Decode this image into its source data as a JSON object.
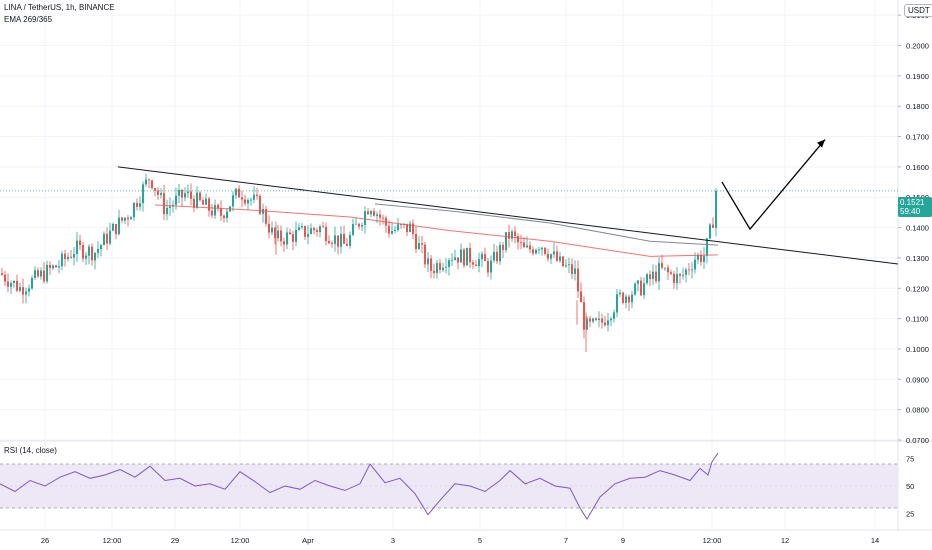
{
  "header": {
    "symbol_line": "LINA / TetherUS, 1h, BINANCE",
    "indicator_line": "EMA 269/365",
    "currency_badge": "USDT"
  },
  "rsi": {
    "label": "RSI (14, close)",
    "levels": [
      75,
      50,
      25
    ]
  },
  "last_price": {
    "value": "0.1521",
    "countdown": "59:40"
  },
  "colors": {
    "up": "#26a69a",
    "down": "#ef5350",
    "ema_fast": "#ef5350",
    "ema_slow": "#787b86",
    "rsi_line": "#7e57c2",
    "rsi_band": "#ede7f6",
    "trendline": "#131722"
  },
  "chart_data": [
    {
      "type": "candlestick",
      "title": "LINA / TetherUS, 1h, BINANCE",
      "ylim": [
        0.07,
        0.215
      ],
      "y_ticks": [
        "0.2100",
        "0.2000",
        "0.1900",
        "0.1800",
        "0.1700",
        "0.1600",
        "0.1500",
        "0.1400",
        "0.1300",
        "0.1200",
        "0.1100",
        "0.1000",
        "0.0900",
        "0.0800",
        "0.0700"
      ],
      "x_ticks": [
        "26",
        "12:00",
        "29",
        "12:00",
        "Apr",
        "3",
        "5",
        "7",
        "9",
        "12:00",
        "12",
        "14"
      ],
      "price_path": [
        {
          "x": 0,
          "y": 0.125
        },
        {
          "x": 20,
          "y": 0.12
        },
        {
          "x": 40,
          "y": 0.124
        },
        {
          "x": 60,
          "y": 0.128
        },
        {
          "x": 75,
          "y": 0.133
        },
        {
          "x": 95,
          "y": 0.132
        },
        {
          "x": 115,
          "y": 0.14
        },
        {
          "x": 130,
          "y": 0.145
        },
        {
          "x": 150,
          "y": 0.157
        },
        {
          "x": 165,
          "y": 0.146
        },
        {
          "x": 185,
          "y": 0.151
        },
        {
          "x": 200,
          "y": 0.148
        },
        {
          "x": 220,
          "y": 0.144
        },
        {
          "x": 240,
          "y": 0.152
        },
        {
          "x": 260,
          "y": 0.147
        },
        {
          "x": 275,
          "y": 0.136
        },
        {
          "x": 300,
          "y": 0.138
        },
        {
          "x": 320,
          "y": 0.14
        },
        {
          "x": 345,
          "y": 0.134
        },
        {
          "x": 370,
          "y": 0.148
        },
        {
          "x": 390,
          "y": 0.139
        },
        {
          "x": 410,
          "y": 0.14
        },
        {
          "x": 430,
          "y": 0.126
        },
        {
          "x": 450,
          "y": 0.131
        },
        {
          "x": 475,
          "y": 0.13
        },
        {
          "x": 490,
          "y": 0.127
        },
        {
          "x": 510,
          "y": 0.138
        },
        {
          "x": 525,
          "y": 0.132
        },
        {
          "x": 540,
          "y": 0.135
        },
        {
          "x": 560,
          "y": 0.128
        },
        {
          "x": 575,
          "y": 0.125
        },
        {
          "x": 585,
          "y": 0.107
        },
        {
          "x": 600,
          "y": 0.108
        },
        {
          "x": 620,
          "y": 0.117
        },
        {
          "x": 640,
          "y": 0.12
        },
        {
          "x": 660,
          "y": 0.126
        },
        {
          "x": 680,
          "y": 0.123
        },
        {
          "x": 695,
          "y": 0.13
        },
        {
          "x": 705,
          "y": 0.131
        },
        {
          "x": 712,
          "y": 0.141
        },
        {
          "x": 718,
          "y": 0.152
        }
      ],
      "ema_fast": [
        {
          "x": 155,
          "y": 0.1475
        },
        {
          "x": 250,
          "y": 0.1458
        },
        {
          "x": 350,
          "y": 0.1435
        },
        {
          "x": 450,
          "y": 0.139
        },
        {
          "x": 550,
          "y": 0.1355
        },
        {
          "x": 650,
          "y": 0.1305
        },
        {
          "x": 718,
          "y": 0.131
        }
      ],
      "ema_slow": [
        {
          "x": 375,
          "y": 0.1478
        },
        {
          "x": 450,
          "y": 0.1455
        },
        {
          "x": 550,
          "y": 0.1415
        },
        {
          "x": 650,
          "y": 0.1355
        },
        {
          "x": 718,
          "y": 0.1342
        }
      ],
      "trendline": [
        {
          "x": 118,
          "y": 0.16
        },
        {
          "x": 898,
          "y": 0.128
        }
      ],
      "projection": [
        {
          "x": 722,
          "y": 0.155
        },
        {
          "x": 750,
          "y": 0.1395
        },
        {
          "x": 825,
          "y": 0.169
        }
      ],
      "last": 0.1521
    },
    {
      "type": "line",
      "title": "RSI (14, close)",
      "ylim": [
        10,
        90
      ],
      "levels": [
        70,
        30
      ],
      "y_ticks": [
        75,
        50,
        25
      ],
      "values": [
        {
          "x": 0,
          "y": 52
        },
        {
          "x": 15,
          "y": 45
        },
        {
          "x": 30,
          "y": 55
        },
        {
          "x": 45,
          "y": 50
        },
        {
          "x": 60,
          "y": 58
        },
        {
          "x": 75,
          "y": 63
        },
        {
          "x": 90,
          "y": 57
        },
        {
          "x": 105,
          "y": 60
        },
        {
          "x": 120,
          "y": 65
        },
        {
          "x": 135,
          "y": 58
        },
        {
          "x": 150,
          "y": 68
        },
        {
          "x": 165,
          "y": 55
        },
        {
          "x": 180,
          "y": 57
        },
        {
          "x": 195,
          "y": 50
        },
        {
          "x": 210,
          "y": 52
        },
        {
          "x": 225,
          "y": 47
        },
        {
          "x": 240,
          "y": 63
        },
        {
          "x": 255,
          "y": 54
        },
        {
          "x": 270,
          "y": 44
        },
        {
          "x": 285,
          "y": 50
        },
        {
          "x": 300,
          "y": 47
        },
        {
          "x": 315,
          "y": 55
        },
        {
          "x": 330,
          "y": 50
        },
        {
          "x": 345,
          "y": 46
        },
        {
          "x": 360,
          "y": 52
        },
        {
          "x": 370,
          "y": 70
        },
        {
          "x": 385,
          "y": 53
        },
        {
          "x": 400,
          "y": 57
        },
        {
          "x": 415,
          "y": 43
        },
        {
          "x": 428,
          "y": 24
        },
        {
          "x": 440,
          "y": 37
        },
        {
          "x": 455,
          "y": 52
        },
        {
          "x": 470,
          "y": 50
        },
        {
          "x": 485,
          "y": 45
        },
        {
          "x": 500,
          "y": 55
        },
        {
          "x": 510,
          "y": 64
        },
        {
          "x": 525,
          "y": 52
        },
        {
          "x": 540,
          "y": 57
        },
        {
          "x": 555,
          "y": 50
        },
        {
          "x": 570,
          "y": 48
        },
        {
          "x": 580,
          "y": 30
        },
        {
          "x": 587,
          "y": 20
        },
        {
          "x": 600,
          "y": 40
        },
        {
          "x": 615,
          "y": 52
        },
        {
          "x": 630,
          "y": 57
        },
        {
          "x": 645,
          "y": 58
        },
        {
          "x": 660,
          "y": 64
        },
        {
          "x": 675,
          "y": 60
        },
        {
          "x": 690,
          "y": 55
        },
        {
          "x": 700,
          "y": 66
        },
        {
          "x": 708,
          "y": 60
        },
        {
          "x": 712,
          "y": 72
        },
        {
          "x": 718,
          "y": 80
        }
      ]
    }
  ]
}
